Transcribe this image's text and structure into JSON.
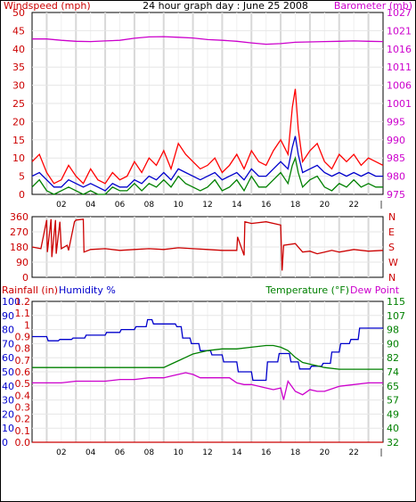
{
  "chart_data": [
    {
      "type": "line",
      "title": "24 hour graph day : June 25 2008",
      "ylabel_left": "Windspeed (mph)",
      "ylabel_right": "Barometer (mb)",
      "ylim_left": [
        0,
        50
      ],
      "ylim_right": [
        975,
        1030
      ],
      "xlim": [
        0,
        24
      ],
      "x_ticks": [
        "02",
        "04",
        "06",
        "08",
        "10",
        "12",
        "14",
        "16",
        "18",
        "20",
        "22"
      ],
      "y_ticks_left": [
        "0",
        "5",
        "10",
        "15",
        "20",
        "25",
        "30",
        "35",
        "40",
        "45",
        "50"
      ],
      "y_ticks_right": [
        "975",
        "980",
        "985",
        "990",
        "995",
        "1001",
        "1006",
        "1011",
        "1016",
        "1021",
        "1027"
      ],
      "colors": {
        "left_label": "#cc0000",
        "right_label": "#cc00cc",
        "gust": "#ff0000",
        "avg": "#0000cc",
        "wind": "#008000",
        "baro": "#cc00cc"
      },
      "series": [
        {
          "key": "baro",
          "axis": "right",
          "x": [
            0,
            1,
            2,
            3,
            4,
            5,
            6,
            7,
            8,
            9,
            10,
            11,
            12,
            13,
            14,
            15,
            16,
            17,
            18,
            19,
            20,
            21,
            22,
            23,
            24
          ],
          "values": [
            1022.0,
            1022.0,
            1021.6,
            1021.3,
            1021.2,
            1021.4,
            1021.6,
            1022.2,
            1022.6,
            1022.7,
            1022.5,
            1022.3,
            1021.8,
            1021.6,
            1021.3,
            1020.8,
            1020.4,
            1020.6,
            1021.0,
            1021.1,
            1021.2,
            1021.3,
            1021.4,
            1021.3,
            1021.2
          ]
        },
        {
          "key": "gust",
          "axis": "left",
          "x": [
            0,
            0.5,
            1,
            1.5,
            2,
            2.5,
            3,
            3.5,
            4,
            4.5,
            5,
            5.5,
            6,
            6.5,
            7,
            7.5,
            8,
            8.5,
            9,
            9.5,
            10,
            10.5,
            11,
            11.5,
            12,
            12.5,
            13,
            13.5,
            14,
            14.5,
            15,
            15.5,
            16,
            16.5,
            17,
            17.5,
            17.8,
            18,
            18.2,
            18.5,
            19,
            19.5,
            20,
            20.5,
            21,
            21.5,
            22,
            22.5,
            23,
            23.5,
            24
          ],
          "values": [
            9,
            11,
            6,
            3,
            4,
            8,
            5,
            3,
            7,
            4,
            3,
            6,
            4,
            5,
            9,
            6,
            10,
            8,
            12,
            7,
            14,
            11,
            9,
            7,
            8,
            10,
            6,
            8,
            11,
            7,
            12,
            9,
            8,
            12,
            15,
            11,
            24,
            29,
            18,
            9,
            12,
            14,
            9,
            7,
            11,
            9,
            11,
            8,
            10,
            9,
            8
          ]
        },
        {
          "key": "avg",
          "axis": "left",
          "x": [
            0,
            0.5,
            1,
            1.5,
            2,
            2.5,
            3,
            3.5,
            4,
            4.5,
            5,
            5.5,
            6,
            6.5,
            7,
            7.5,
            8,
            8.5,
            9,
            9.5,
            10,
            10.5,
            11,
            11.5,
            12,
            12.5,
            13,
            13.5,
            14,
            14.5,
            15,
            15.5,
            16,
            16.5,
            17,
            17.5,
            17.8,
            18,
            18.2,
            18.5,
            19,
            19.5,
            20,
            20.5,
            21,
            21.5,
            22,
            22.5,
            23,
            23.5,
            24
          ],
          "values": [
            5,
            6,
            4,
            2,
            2,
            4,
            3,
            2,
            3,
            2,
            1,
            3,
            2,
            2,
            4,
            3,
            5,
            4,
            6,
            4,
            7,
            6,
            5,
            4,
            5,
            6,
            4,
            5,
            6,
            4,
            7,
            5,
            5,
            7,
            9,
            7,
            13,
            16,
            11,
            6,
            7,
            8,
            6,
            5,
            6,
            5,
            6,
            5,
            6,
            5,
            5
          ]
        },
        {
          "key": "wind",
          "axis": "left",
          "x": [
            0,
            0.5,
            1,
            1.5,
            2,
            2.5,
            3,
            3.5,
            4,
            4.5,
            5,
            5.5,
            6,
            6.5,
            7,
            7.5,
            8,
            8.5,
            9,
            9.5,
            10,
            10.5,
            11,
            11.5,
            12,
            12.5,
            13,
            13.5,
            14,
            14.5,
            15,
            15.5,
            16,
            16.5,
            17,
            17.5,
            17.8,
            18,
            18.2,
            18.5,
            19,
            19.5,
            20,
            20.5,
            21,
            21.5,
            22,
            22.5,
            23,
            23.5,
            24
          ],
          "values": [
            2,
            4,
            1,
            0,
            1,
            2,
            1,
            0,
            1,
            0,
            0,
            2,
            1,
            1,
            3,
            1,
            3,
            2,
            4,
            2,
            5,
            3,
            2,
            1,
            2,
            4,
            1,
            2,
            4,
            1,
            5,
            2,
            2,
            4,
            6,
            3,
            8,
            10,
            6,
            2,
            4,
            5,
            2,
            1,
            3,
            2,
            4,
            2,
            3,
            2,
            2
          ]
        }
      ]
    },
    {
      "type": "line",
      "ylabel_left": "",
      "ylim": [
        0,
        360
      ],
      "xlim": [
        0,
        24
      ],
      "y_ticks_left": [
        "0",
        "90",
        "180",
        "270",
        "360"
      ],
      "y_ticks_right": [
        "N",
        "W",
        "S",
        "E",
        "N"
      ],
      "colors": {
        "dir": "#cc0000",
        "right_label": "#cc0000"
      },
      "series": [
        {
          "key": "dir",
          "x": [
            0,
            0.6,
            1.0,
            1.05,
            1.3,
            1.35,
            1.6,
            1.65,
            1.9,
            2.0,
            2.4,
            2.5,
            2.9,
            3.0,
            3.5,
            3.55,
            4.0,
            5,
            6,
            7,
            8,
            9,
            10,
            11,
            12,
            13,
            14,
            14.05,
            14.5,
            14.55,
            15.0,
            16,
            17,
            17.1,
            17.2,
            18,
            18.5,
            19,
            19.5,
            20,
            20.5,
            21,
            22,
            23,
            24
          ],
          "values": [
            180,
            170,
            340,
            150,
            345,
            120,
            340,
            140,
            330,
            170,
            190,
            160,
            330,
            340,
            345,
            150,
            165,
            170,
            160,
            165,
            170,
            165,
            175,
            170,
            165,
            160,
            160,
            240,
            130,
            330,
            320,
            330,
            310,
            40,
            190,
            200,
            150,
            155,
            140,
            150,
            160,
            150,
            165,
            155,
            160
          ]
        }
      ]
    },
    {
      "type": "line",
      "ylabel_rain": "Rainfall (in)",
      "ylabel_humidity": "Humidity %",
      "ylabel_temp": "Temperature (°F)",
      "ylabel_dew": "Dew Point",
      "xlim": [
        0,
        24
      ],
      "x_ticks": [
        "02",
        "04",
        "06",
        "08",
        "10",
        "12",
        "14",
        "16",
        "18",
        "20",
        "22"
      ],
      "y_ticks_humidity": [
        "0",
        "10",
        "20",
        "30",
        "40",
        "50",
        "60",
        "70",
        "80",
        "90",
        "100"
      ],
      "y_ticks_rain": [
        "0.0",
        "0.1",
        "0.2",
        "0.3",
        "0.4",
        "0.5",
        "0.6",
        "0.7",
        "0.8",
        "0.9",
        "1",
        "1.1",
        "1.2"
      ],
      "y_ticks_temp": [
        "32",
        "40",
        "49",
        "57",
        "65",
        "74",
        "82",
        "90",
        "98",
        "107",
        "115"
      ],
      "ylim_humidity": [
        0,
        100
      ],
      "ylim_rain": [
        0,
        1.2
      ],
      "ylim_temp": [
        32,
        115
      ],
      "colors": {
        "rain": "#cc0000",
        "humidity": "#0000cc",
        "temp": "#008000",
        "dew": "#cc00cc"
      },
      "series": [
        {
          "key": "humidity",
          "axis": "humidity",
          "x": [
            0,
            1,
            1.1,
            1.8,
            1.9,
            2.7,
            2.8,
            3.6,
            3.7,
            5.0,
            5.1,
            6.0,
            6.1,
            7.0,
            7.1,
            7.8,
            7.9,
            8.2,
            8.3,
            9.8,
            9.9,
            10.2,
            10.3,
            10.8,
            10.9,
            11.4,
            11.5,
            12.2,
            12.3,
            13.0,
            13.1,
            14.0,
            14.1,
            15.0,
            15.1,
            16.0,
            16.1,
            16.8,
            16.9,
            17.6,
            17.7,
            18.2,
            18.3,
            19.0,
            19.1,
            19.8,
            19.9,
            20.4,
            20.5,
            21.0,
            21.1,
            21.7,
            21.8,
            22.3,
            22.4,
            24
          ],
          "values": [
            75,
            75,
            72,
            72,
            73,
            73,
            74,
            74,
            76,
            76,
            78,
            78,
            80,
            80,
            82,
            82,
            87,
            87,
            84,
            84,
            82,
            82,
            74,
            74,
            70,
            70,
            65,
            65,
            62,
            62,
            57,
            57,
            50,
            50,
            44,
            44,
            57,
            57,
            63,
            63,
            57,
            57,
            52,
            52,
            54,
            54,
            56,
            56,
            64,
            64,
            70,
            70,
            73,
            73,
            81,
            81
          ]
        },
        {
          "key": "temp",
          "axis": "temp",
          "x": [
            0,
            1,
            2,
            3,
            4,
            5,
            6,
            7,
            8,
            9,
            9.5,
            10,
            10.5,
            11,
            11.5,
            12,
            13,
            14,
            15,
            16,
            16.5,
            17,
            17.5,
            18,
            18.5,
            19,
            19.5,
            20,
            21,
            22,
            23,
            24
          ],
          "values": [
            76,
            76,
            76,
            76,
            76,
            76,
            76,
            76,
            76,
            76,
            78,
            80,
            82,
            84,
            85,
            86,
            87,
            87,
            88,
            89,
            89,
            88,
            86,
            82,
            79,
            78,
            77,
            76,
            75,
            75,
            75,
            75
          ]
        },
        {
          "key": "dew",
          "axis": "temp",
          "x": [
            0,
            1,
            2,
            3,
            4,
            5,
            6,
            7,
            8,
            9,
            9.5,
            10,
            10.5,
            11,
            11.5,
            12,
            13,
            13.5,
            14,
            14.5,
            15,
            16,
            16.5,
            17,
            17.2,
            17.5,
            18,
            18.5,
            19,
            19.5,
            20,
            21,
            22,
            23,
            24
          ],
          "values": [
            67,
            67,
            67,
            68,
            68,
            68,
            69,
            69,
            70,
            70,
            71,
            72,
            73,
            72,
            70,
            70,
            70,
            70,
            67,
            66,
            66,
            64,
            63,
            64,
            57,
            68,
            62,
            60,
            63,
            62,
            62,
            65,
            66,
            67,
            67
          ]
        },
        {
          "key": "rain",
          "axis": "rain",
          "x": [
            0,
            24
          ],
          "values": [
            0,
            0
          ]
        }
      ]
    }
  ]
}
